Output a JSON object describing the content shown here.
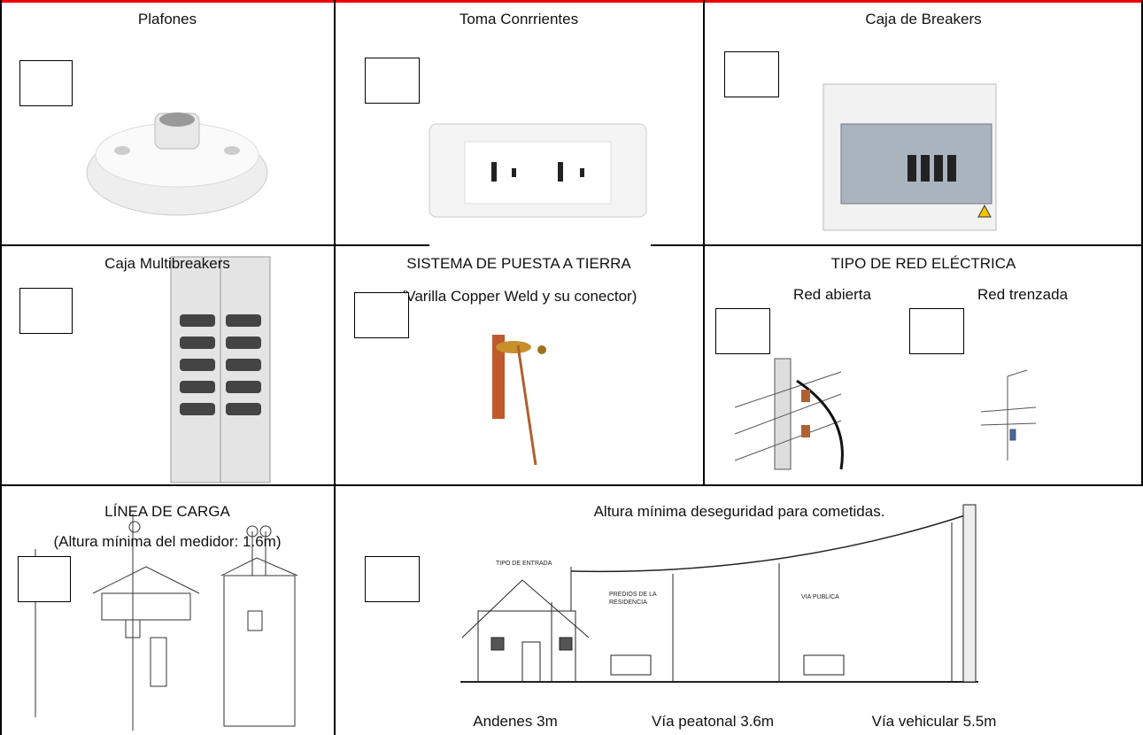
{
  "row1": [
    {
      "title": "Plafones"
    },
    {
      "title": "Toma Conrrientes"
    },
    {
      "title": "Caja de Breakers"
    }
  ],
  "row2": [
    {
      "title": "Caja Multibreakers"
    },
    {
      "title": "SISTEMA DE PUESTA A TIERRA",
      "subtitle": "(Varilla Copper Weld y su conector)"
    },
    {
      "title": "TIPO DE RED ELÉCTRICA",
      "options": [
        "Red abierta",
        "Red trenzada"
      ]
    }
  ],
  "row3": [
    {
      "title": "LÍNEA DE CARGA",
      "subtitle": "(Altura mínima del medidor: 1.6m)"
    },
    {
      "title": "Altura mínima deseguridad para cometidas.",
      "labels": [
        "Andenes 3m",
        "Vía peatonal 3.6m",
        "Vía vehicular 5.5m"
      ],
      "diagram_labels": [
        "TIPO DE ENTRADA",
        "PREDIOS DE LA RESIDENCIA",
        "VIA PUBLICA"
      ]
    }
  ]
}
